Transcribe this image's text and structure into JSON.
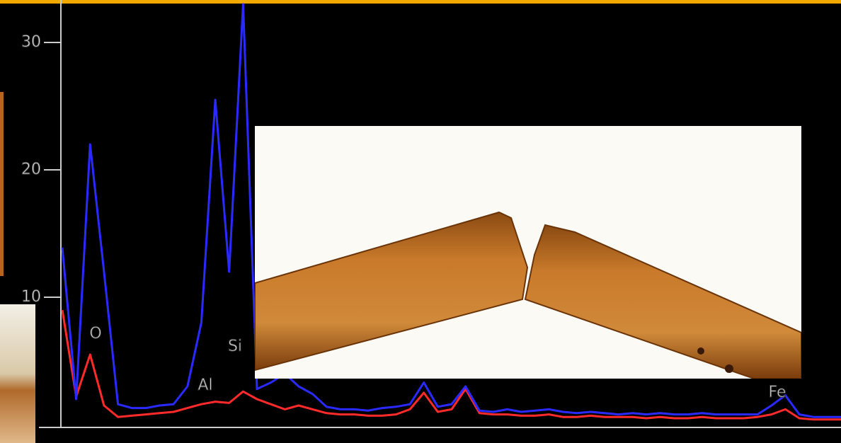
{
  "chart_data": {
    "type": "line",
    "annotations": [
      "O",
      "Al",
      "Si",
      "Fe"
    ],
    "series": [
      {
        "color": "#ff2a2a",
        "values": [
          9,
          2.2,
          5.5,
          1.5,
          0.6,
          0.7,
          0.8,
          0.9,
          1,
          1.3,
          1.6,
          1.8,
          1.7,
          2.6,
          2,
          1.6,
          1.2,
          1.5,
          1.2,
          0.9,
          0.8,
          0.8,
          0.7,
          0.7,
          0.8,
          1.2,
          2.5,
          1.0,
          1.2,
          2.8,
          0.9,
          0.8,
          0.8,
          0.7,
          0.7,
          0.8,
          0.6,
          0.6,
          0.7,
          0.6,
          0.6,
          0.6,
          0.5,
          0.6,
          0.5,
          0.5,
          0.6,
          0.5,
          0.5,
          0.5,
          0.6,
          0.8,
          1.2,
          0.5,
          0.4,
          0.4,
          0.4
        ]
      },
      {
        "color": "#2a2aff",
        "values": [
          13.9,
          2,
          22,
          12,
          1.6,
          1.3,
          1.3,
          1.5,
          1.6,
          3,
          8,
          25.5,
          12,
          33,
          2.8,
          3.3,
          4,
          3,
          2.4,
          1.4,
          1.2,
          1.2,
          1.1,
          1.3,
          1.4,
          1.6,
          3.3,
          1.4,
          1.6,
          3,
          1.1,
          1.0,
          1.2,
          1.0,
          1.1,
          1.2,
          1.0,
          0.9,
          1.0,
          0.9,
          0.8,
          0.9,
          0.8,
          0.9,
          0.8,
          0.8,
          0.9,
          0.8,
          0.8,
          0.8,
          0.8,
          1.5,
          2.3,
          0.8,
          0.6,
          0.6,
          0.6
        ]
      }
    ],
    "ylim": [
      0,
      33.2
    ],
    "yticks": [
      10,
      20,
      30
    ]
  }
}
